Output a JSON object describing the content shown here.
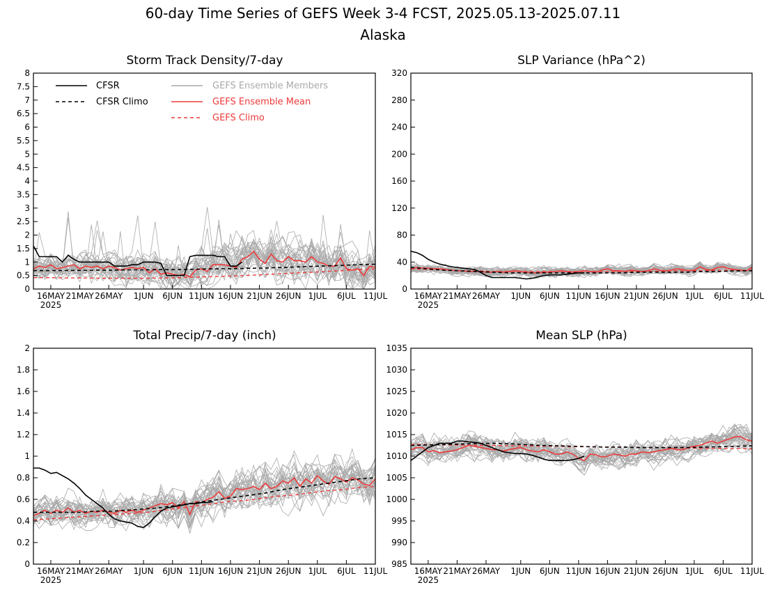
{
  "figure": {
    "title_line1": "60-day Time Series of GEFS Week 3-4 FCST, 2025.05.13-2025.07.11",
    "title_line2": "Alaska"
  },
  "legend": {
    "cfsr": "CFSR",
    "cfsr_climo": "CFSR Climo",
    "members": "GEFS Ensemble Members",
    "mean": "GEFS Ensemble Mean",
    "gefs_climo": "GEFS Climo"
  },
  "colors": {
    "cfsr": "#000000",
    "members": "#a9a9a9",
    "mean": "#ee3b3b",
    "gefs_climo": "#ee3b3b"
  },
  "x_axis": {
    "ticks": [
      "16MAY",
      "21MAY",
      "26MAY",
      "1JUN",
      "6JUN",
      "11JUN",
      "16JUN",
      "21JUN",
      "26JUN",
      "1JUL",
      "6JUL",
      "11JUL"
    ],
    "year_label": "2025"
  },
  "chart_data": [
    {
      "type": "line",
      "title": "Storm Track Density/7-day",
      "xlabel": "",
      "ylabel": "",
      "x_range": [
        "2025-05-13",
        "2025-07-11"
      ],
      "ylim": [
        0,
        8
      ],
      "yticks": [
        "0",
        "0.5",
        "1",
        "1.5",
        "2",
        "2.5",
        "3",
        "3.5",
        "4",
        "4.5",
        "5",
        "5.5",
        "6",
        "6.5",
        "7",
        "7.5",
        "8"
      ],
      "legend_position": "top-left",
      "series": [
        {
          "name": "CFSR",
          "x_start": "2025-05-13",
          "values": [
            1.6,
            1.2,
            1.2,
            1.2,
            1.2,
            1.0,
            1.25,
            1.1,
            1.0,
            1.0,
            1.0,
            1.0,
            1.0,
            1.0,
            0.85,
            0.85,
            0.85,
            0.9,
            0.9,
            1.0,
            1.0,
            1.0,
            0.95,
            0.5,
            0.5,
            0.5,
            0.5,
            1.2,
            1.25,
            1.25,
            1.25,
            1.25,
            1.2,
            1.2,
            0.85,
            0.85,
            1.0
          ]
        },
        {
          "name": "CFSR Climo",
          "x_start": "2025-05-13",
          "values": [
            0.68,
            0.68,
            0.69,
            0.69,
            0.7,
            0.7,
            0.71,
            0.71,
            0.72,
            0.72,
            0.73,
            0.74,
            0.75,
            0.76,
            0.77,
            0.78,
            0.8,
            0.82,
            0.84,
            0.86,
            0.88,
            0.9,
            0.92
          ]
        },
        {
          "name": "GEFS Ensemble Mean",
          "x_start": "2025-05-13",
          "values": [
            0.75,
            0.85,
            0.8,
            0.9,
            0.75,
            0.8,
            0.85,
            0.9,
            0.75,
            0.85,
            0.8,
            0.85,
            0.75,
            0.85,
            0.8,
            0.7,
            0.75,
            0.8,
            0.75,
            0.8,
            0.6,
            0.75,
            0.55,
            0.6,
            0.55,
            0.5,
            0.55,
            0.45,
            0.7,
            0.75,
            0.65,
            0.9,
            0.9,
            0.9,
            0.85,
            0.8,
            1.1,
            1.2,
            1.4,
            1.1,
            0.95,
            1.3,
            1.05,
            1.0,
            1.2,
            1.05,
            1.05,
            1.0,
            1.2,
            1.0,
            0.95,
            0.85,
            0.85,
            1.15,
            0.75,
            0.7,
            0.75,
            0.5,
            0.85,
            0.8
          ]
        },
        {
          "name": "GEFS Climo",
          "x_start": "2025-05-13",
          "values": [
            0.42,
            0.42,
            0.41,
            0.41,
            0.4,
            0.4,
            0.4,
            0.4,
            0.41,
            0.42,
            0.44,
            0.46,
            0.48,
            0.5,
            0.53,
            0.56,
            0.59,
            0.62,
            0.65,
            0.68,
            0.72,
            0.75
          ]
        }
      ]
    },
    {
      "type": "line",
      "title": "SLP Variance (hPa^2)",
      "xlabel": "",
      "ylabel": "",
      "x_range": [
        "2025-05-13",
        "2025-07-11"
      ],
      "ylim": [
        0,
        320
      ],
      "yticks": [
        "0",
        "40",
        "80",
        "120",
        "160",
        "200",
        "240",
        "280",
        "320"
      ],
      "series": [
        {
          "name": "CFSR",
          "x_start": "2025-05-13",
          "values": [
            56,
            54,
            50,
            44,
            40,
            37,
            35,
            33,
            32,
            31,
            30,
            29,
            25,
            20,
            17,
            17,
            17,
            17,
            17,
            16,
            15,
            16,
            18,
            20,
            21,
            21,
            21,
            22,
            23,
            24,
            24
          ]
        },
        {
          "name": "CFSR Climo",
          "x_start": "2025-05-13",
          "values": [
            32,
            30,
            28,
            27,
            26,
            25,
            24,
            24,
            24,
            24,
            24,
            24,
            24,
            24,
            25,
            25,
            25,
            25,
            26,
            26,
            27,
            27
          ]
        },
        {
          "name": "GEFS Ensemble Mean",
          "x_start": "2025-05-13",
          "values": [
            30,
            32,
            31,
            31,
            30,
            30,
            29,
            28,
            27,
            27,
            26,
            26,
            26,
            25,
            25,
            26,
            25,
            26,
            27,
            26,
            25,
            24,
            24,
            25,
            25,
            26,
            27,
            26,
            25,
            26,
            27,
            26,
            25,
            28,
            30,
            27,
            27,
            26,
            28,
            27,
            26,
            27,
            30,
            28,
            27,
            28,
            30,
            29,
            27,
            28,
            33,
            29,
            28,
            32,
            33,
            30,
            29,
            28,
            27,
            32
          ]
        },
        {
          "name": "GEFS Climo",
          "x_start": "2025-05-13",
          "values": [
            30,
            29,
            28,
            27,
            27,
            26,
            26,
            26,
            26,
            26,
            26,
            26,
            26,
            26,
            26,
            26,
            27,
            27,
            27,
            28,
            28,
            28
          ]
        }
      ]
    },
    {
      "type": "line",
      "title": "Total Precip/7-day (inch)",
      "xlabel": "",
      "ylabel": "",
      "x_range": [
        "2025-05-13",
        "2025-07-11"
      ],
      "ylim": [
        0,
        2
      ],
      "yticks": [
        "0",
        "0.2",
        "0.4",
        "0.6",
        "0.8",
        "1",
        "1.2",
        "1.4",
        "1.6",
        "1.8",
        "2"
      ],
      "series": [
        {
          "name": "CFSR",
          "x_start": "2025-05-13",
          "values": [
            0.89,
            0.89,
            0.87,
            0.84,
            0.85,
            0.82,
            0.79,
            0.75,
            0.7,
            0.64,
            0.6,
            0.56,
            0.52,
            0.46,
            0.42,
            0.4,
            0.39,
            0.38,
            0.35,
            0.34,
            0.38,
            0.44,
            0.49,
            0.52,
            0.53,
            0.54,
            0.55,
            0.56,
            0.56,
            0.57,
            0.57,
            0.58
          ]
        },
        {
          "name": "CFSR Climo",
          "x_start": "2025-05-13",
          "values": [
            0.48,
            0.48,
            0.48,
            0.48,
            0.49,
            0.49,
            0.5,
            0.51,
            0.52,
            0.54,
            0.56,
            0.58,
            0.6,
            0.62,
            0.64,
            0.66,
            0.69,
            0.71,
            0.73,
            0.75,
            0.77,
            0.79,
            0.8
          ]
        },
        {
          "name": "GEFS Ensemble Mean",
          "x_start": "2025-05-13",
          "values": [
            0.45,
            0.47,
            0.5,
            0.47,
            0.5,
            0.48,
            0.52,
            0.48,
            0.5,
            0.47,
            0.49,
            0.48,
            0.5,
            0.48,
            0.47,
            0.5,
            0.48,
            0.5,
            0.48,
            0.5,
            0.52,
            0.54,
            0.56,
            0.55,
            0.57,
            0.52,
            0.58,
            0.46,
            0.58,
            0.57,
            0.6,
            0.62,
            0.67,
            0.61,
            0.63,
            0.7,
            0.69,
            0.7,
            0.72,
            0.69,
            0.75,
            0.7,
            0.72,
            0.77,
            0.75,
            0.8,
            0.72,
            0.79,
            0.75,
            0.82,
            0.77,
            0.74,
            0.81,
            0.79,
            0.76,
            0.8,
            0.78,
            0.74,
            0.73,
            0.79
          ]
        },
        {
          "name": "GEFS Climo",
          "x_start": "2025-05-13",
          "values": [
            0.41,
            0.42,
            0.43,
            0.44,
            0.45,
            0.46,
            0.47,
            0.48,
            0.5,
            0.52,
            0.54,
            0.56,
            0.58,
            0.59,
            0.61,
            0.63,
            0.64,
            0.66,
            0.68,
            0.69,
            0.71,
            0.72
          ]
        }
      ]
    },
    {
      "type": "line",
      "title": "Mean SLP (hPa)",
      "xlabel": "",
      "ylabel": "",
      "x_range": [
        "2025-05-13",
        "2025-07-11"
      ],
      "ylim": [
        985,
        1035
      ],
      "yticks": [
        "985",
        "990",
        "995",
        "1000",
        "1005",
        "1010",
        "1015",
        "1020",
        "1025",
        "1030",
        "1035"
      ],
      "series": [
        {
          "name": "CFSR",
          "x_start": "2025-05-13",
          "values": [
            1009,
            1010,
            1011,
            1012,
            1012.5,
            1013,
            1013,
            1013,
            1013.5,
            1013.5,
            1013.3,
            1013.2,
            1013,
            1012.5,
            1012,
            1011.5,
            1011,
            1010.8,
            1010.6,
            1010.6,
            1010.5,
            1010.2,
            1009.8,
            1009.3,
            1009,
            1009,
            1009,
            1009,
            1009.2,
            1009.5,
            1010
          ]
        },
        {
          "name": "CFSR Climo",
          "x_start": "2025-05-13",
          "values": [
            1012.5,
            1012.6,
            1012.7,
            1012.8,
            1012.9,
            1013,
            1012.9,
            1012.7,
            1012.5,
            1012.4,
            1012.3,
            1012.2,
            1012.1,
            1012.1,
            1012,
            1012,
            1012,
            1012,
            1012.1,
            1012.2,
            1012.3,
            1012.4
          ]
        },
        {
          "name": "GEFS Ensemble Mean",
          "x_start": "2025-05-13",
          "values": [
            1011.5,
            1012,
            1012,
            1011,
            1011.3,
            1010.8,
            1011,
            1011.2,
            1011.5,
            1012,
            1012.5,
            1012.3,
            1012,
            1011.8,
            1011.5,
            1011.5,
            1011.2,
            1011.5,
            1011.8,
            1012,
            1011.5,
            1011.2,
            1011,
            1011.5,
            1011,
            1010.5,
            1010.5,
            1011,
            1010.5,
            1009.5,
            1009,
            1010.5,
            1010.3,
            1009.8,
            1010,
            1010.5,
            1010.3,
            1010,
            1010.5,
            1010.5,
            1011,
            1010.8,
            1011,
            1011.3,
            1011.5,
            1011.8,
            1011.5,
            1011.5,
            1012,
            1012.3,
            1012.5,
            1013,
            1013.5,
            1013,
            1013.5,
            1014,
            1014.5,
            1014.5,
            1013.8,
            1013.5
          ]
        },
        {
          "name": "GEFS Climo",
          "x_start": "2025-05-13",
          "values": [
            1012.7,
            1012.7,
            1012.6,
            1012.6,
            1012.5,
            1012.5,
            1012.4,
            1012.4,
            1012.3,
            1012.3,
            1012.2,
            1012.2,
            1012.1,
            1012.1,
            1012,
            1012,
            1011.9,
            1011.9,
            1011.8,
            1011.8,
            1011.8,
            1011.7
          ]
        }
      ]
    }
  ]
}
